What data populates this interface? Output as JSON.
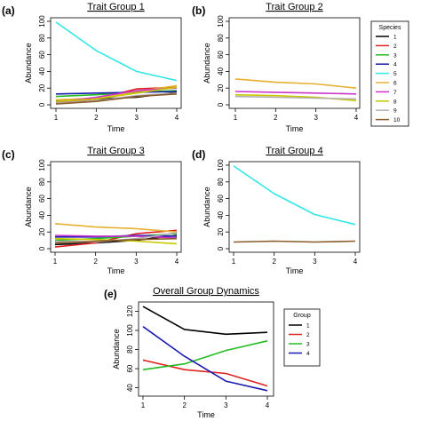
{
  "chart_data": [
    {
      "id": "a",
      "panel_label": "(a)",
      "type": "line",
      "title": "Trait Group 1",
      "xlabel": "Time",
      "ylabel": "Abundance",
      "x": [
        1,
        2,
        3,
        4
      ],
      "xlim": [
        1,
        4
      ],
      "ylim": [
        0,
        100
      ],
      "xticks": [
        1,
        2,
        3,
        4
      ],
      "yticks": [
        0,
        20,
        40,
        60,
        80,
        100
      ],
      "series": [
        {
          "name": "1",
          "color": "#000000",
          "values": [
            5,
            7,
            9,
            15
          ]
        },
        {
          "name": "2",
          "color": "#dd2222",
          "values": [
            2,
            7,
            19,
            21
          ]
        },
        {
          "name": "3",
          "color": "#22bb22",
          "values": [
            10,
            12,
            15,
            17
          ]
        },
        {
          "name": "4",
          "color": "#1a1ab0",
          "values": [
            13,
            14,
            15,
            16
          ]
        },
        {
          "name": "5",
          "color": "#33e6e6",
          "values": [
            99,
            65,
            40,
            29
          ]
        },
        {
          "name": "6",
          "color": "#e6b030",
          "values": [
            6,
            8,
            16,
            23
          ]
        },
        {
          "name": "7",
          "color": "#cc33cc",
          "values": [
            3,
            9,
            17,
            20
          ]
        },
        {
          "name": "8",
          "color": "#c8c800",
          "values": [
            4,
            7,
            14,
            21
          ]
        },
        {
          "name": "9",
          "color": "#b0b0b0",
          "values": [
            2,
            5,
            11,
            14
          ]
        },
        {
          "name": "10",
          "color": "#8b5a2b",
          "values": [
            1,
            4,
            10,
            13
          ]
        }
      ]
    },
    {
      "id": "b",
      "panel_label": "(b)",
      "type": "line",
      "title": "Trait Group 2",
      "xlabel": "Time",
      "ylabel": "Abundance",
      "x": [
        1,
        2,
        3,
        4
      ],
      "xlim": [
        1,
        4
      ],
      "ylim": [
        0,
        100
      ],
      "xticks": [
        1,
        2,
        3,
        4
      ],
      "yticks": [
        0,
        20,
        40,
        60,
        80,
        100
      ],
      "series": [
        {
          "name": "6",
          "color": "#e6b030",
          "values": [
            31,
            27,
            25,
            20
          ]
        },
        {
          "name": "7",
          "color": "#cc33cc",
          "values": [
            16,
            15,
            14,
            13
          ]
        },
        {
          "name": "8",
          "color": "#c8c800",
          "values": [
            12,
            11,
            9,
            5
          ]
        },
        {
          "name": "9",
          "color": "#b0b0b0",
          "values": [
            10,
            9,
            8,
            7
          ]
        }
      ]
    },
    {
      "id": "c",
      "panel_label": "(c)",
      "type": "line",
      "title": "Trait Group 3",
      "xlabel": "Time",
      "ylabel": "Abundance",
      "x": [
        1,
        2,
        3,
        4
      ],
      "xlim": [
        1,
        4
      ],
      "ylim": [
        0,
        100
      ],
      "xticks": [
        1,
        2,
        3,
        4
      ],
      "yticks": [
        0,
        20,
        40,
        60,
        80,
        100
      ],
      "series": [
        {
          "name": "1",
          "color": "#000000",
          "values": [
            5,
            7,
            10,
            16
          ]
        },
        {
          "name": "2",
          "color": "#dd2222",
          "values": [
            2,
            7,
            18,
            22
          ]
        },
        {
          "name": "3",
          "color": "#22bb22",
          "values": [
            10,
            12,
            15,
            18
          ]
        },
        {
          "name": "4",
          "color": "#1a1ab0",
          "values": [
            14,
            14,
            16,
            15
          ]
        },
        {
          "name": "6",
          "color": "#e6b030",
          "values": [
            30,
            26,
            24,
            20
          ]
        },
        {
          "name": "7",
          "color": "#cc33cc",
          "values": [
            16,
            15,
            15,
            13
          ]
        },
        {
          "name": "8",
          "color": "#c8c800",
          "values": [
            12,
            11,
            9,
            6
          ]
        },
        {
          "name": "9",
          "color": "#b0b0b0",
          "values": [
            9,
            8,
            12,
            19
          ]
        },
        {
          "name": "10",
          "color": "#8b5a2b",
          "values": [
            7,
            9,
            11,
            12
          ]
        }
      ]
    },
    {
      "id": "d",
      "panel_label": "(d)",
      "type": "line",
      "title": "Trait Group 4",
      "xlabel": "Time",
      "ylabel": "Abundance",
      "x": [
        1,
        2,
        3,
        4
      ],
      "xlim": [
        1,
        4
      ],
      "ylim": [
        0,
        100
      ],
      "xticks": [
        1,
        2,
        3,
        4
      ],
      "yticks": [
        0,
        20,
        40,
        60,
        80,
        100
      ],
      "series": [
        {
          "name": "5",
          "color": "#33e6e6",
          "values": [
            99,
            66,
            41,
            29
          ]
        },
        {
          "name": "10",
          "color": "#8b5a2b",
          "values": [
            8,
            9,
            8,
            9
          ]
        }
      ]
    },
    {
      "id": "e",
      "panel_label": "(e)",
      "type": "line",
      "title": "Overall Group Dynamics",
      "xlabel": "Time",
      "ylabel": "Abundance",
      "x": [
        1,
        2,
        3,
        4
      ],
      "xlim": [
        1,
        4
      ],
      "ylim": [
        35,
        126
      ],
      "xticks": [
        1,
        2,
        3,
        4
      ],
      "yticks": [
        40,
        60,
        80,
        100,
        120
      ],
      "series": [
        {
          "name": "1",
          "color": "#000000",
          "values": [
            125,
            101,
            96,
            98
          ]
        },
        {
          "name": "2",
          "color": "#dd2222",
          "values": [
            69,
            59,
            55,
            42
          ]
        },
        {
          "name": "3",
          "color": "#22bb22",
          "values": [
            59,
            65,
            79,
            89
          ]
        },
        {
          "name": "4",
          "color": "#1a1ab0",
          "values": [
            104,
            73,
            47,
            37
          ]
        }
      ]
    }
  ],
  "legends": {
    "species": {
      "title": "Species",
      "entries": [
        {
          "label": "1",
          "color": "#000000"
        },
        {
          "label": "2",
          "color": "#dd2222"
        },
        {
          "label": "3",
          "color": "#22bb22"
        },
        {
          "label": "4",
          "color": "#1a1ab0"
        },
        {
          "label": "5",
          "color": "#33e6e6"
        },
        {
          "label": "6",
          "color": "#e6b030"
        },
        {
          "label": "7",
          "color": "#cc33cc"
        },
        {
          "label": "8",
          "color": "#c8c800"
        },
        {
          "label": "9",
          "color": "#b0b0b0"
        },
        {
          "label": "10",
          "color": "#8b5a2b"
        }
      ]
    },
    "group": {
      "title": "Group",
      "entries": [
        {
          "label": "1",
          "color": "#000000"
        },
        {
          "label": "2",
          "color": "#dd2222"
        },
        {
          "label": "3",
          "color": "#22bb22"
        },
        {
          "label": "4",
          "color": "#1a1ab0"
        }
      ]
    }
  }
}
